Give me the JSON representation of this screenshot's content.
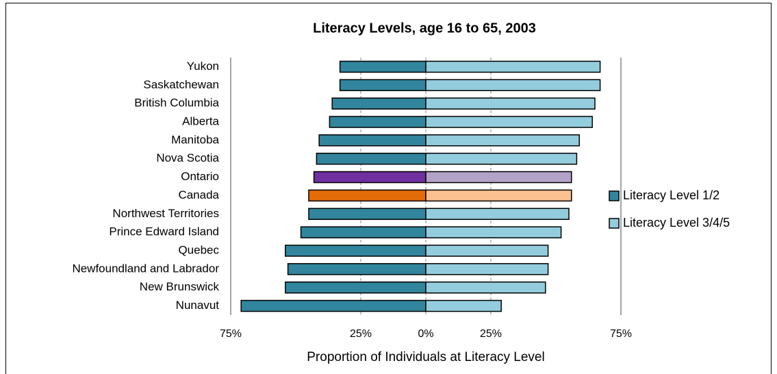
{
  "chart_data": {
    "type": "diverging-bar",
    "title": "Literacy Levels, age 16 to 65, 2003",
    "x_label": "Proportion of Individuals at Literacy Level",
    "categories": [
      "Yukon",
      "Saskatchewan",
      "British Columbia",
      "Alberta",
      "Manitoba",
      "Nova Scotia",
      "Ontario",
      "Canada",
      "Northwest Territories",
      "Prince Edward Island",
      "Quebec",
      "Newfoundland and Labrador",
      "New Brunswick",
      "Nunavut"
    ],
    "series": [
      {
        "name": "Literacy Level 1/2",
        "color": "#31859c",
        "colors": [
          "#31859c",
          "#31859c",
          "#31859c",
          "#31859c",
          "#31859c",
          "#31859c",
          "#7030a0",
          "#e36c09",
          "#31859c",
          "#31859c",
          "#31859c",
          "#31859c",
          "#31859c",
          "#31859c"
        ],
        "values": [
          -33,
          -33,
          -36,
          -37,
          -41,
          -42,
          -43,
          -45,
          -45,
          -48,
          -54,
          -53,
          -54,
          -71
        ]
      },
      {
        "name": "Literacy Level 3/4/5",
        "color": "#93cddd",
        "colors": [
          "#93cddd",
          "#93cddd",
          "#93cddd",
          "#93cddd",
          "#93cddd",
          "#93cddd",
          "#b3a2c7",
          "#fac090",
          "#93cddd",
          "#93cddd",
          "#93cddd",
          "#93cddd",
          "#93cddd",
          "#93cddd"
        ],
        "values": [
          67,
          67,
          65,
          64,
          59,
          58,
          56,
          56,
          55,
          52,
          47,
          47,
          46,
          29
        ]
      }
    ],
    "xlim": [
      -75,
      75
    ],
    "xticks": [
      {
        "value": -75,
        "label": "75%"
      },
      {
        "value": -25,
        "label": "25%"
      },
      {
        "value": 0,
        "label": "0%"
      },
      {
        "value": 25,
        "label": "25%"
      },
      {
        "value": 75,
        "label": "75%"
      }
    ],
    "grid": true,
    "legend": "right"
  }
}
